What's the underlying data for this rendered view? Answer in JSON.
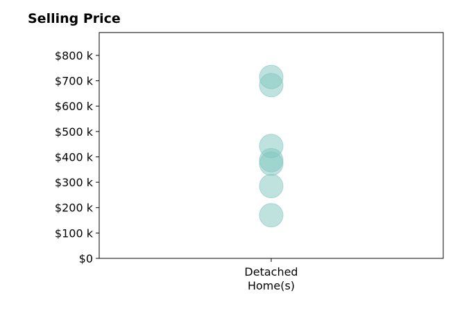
{
  "chart_data": {
    "type": "scatter",
    "title": "Selling Price",
    "categories": [
      "Detached\nHome(s)"
    ],
    "category_lines": [
      [
        "Detached",
        "Home(s)"
      ]
    ],
    "yticks": [
      0,
      100000,
      200000,
      300000,
      400000,
      500000,
      600000,
      700000,
      800000
    ],
    "ytick_labels": [
      "$0",
      "$100 k",
      "$200 k",
      "$300 k",
      "$400 k",
      "$500 k",
      "$600 k",
      "$700 k",
      "$800 k"
    ],
    "ylim": [
      0,
      890000
    ],
    "series": [
      {
        "points": [
          {
            "category": 0,
            "y": 715000
          },
          {
            "category": 0,
            "y": 683000
          },
          {
            "category": 0,
            "y": 443000
          },
          {
            "category": 0,
            "y": 387000
          },
          {
            "category": 0,
            "y": 373000
          },
          {
            "category": 0,
            "y": 285000
          },
          {
            "category": 0,
            "y": 170000
          }
        ],
        "color": "#7fc6bf",
        "opacity": 0.5
      }
    ],
    "grid": false,
    "xlabel": "",
    "ylabel": ""
  }
}
